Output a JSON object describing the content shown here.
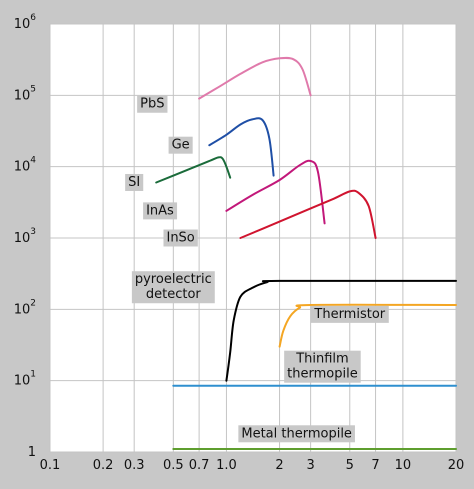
{
  "chart_data": {
    "type": "line",
    "title": "",
    "xlabel": "",
    "ylabel": "",
    "x_scale": "log",
    "y_scale": "log",
    "xlim": [
      0.1,
      20
    ],
    "ylim": [
      1,
      1000000
    ],
    "grid": true,
    "x_ticks": [
      {
        "value": 0.1,
        "label": "0.1"
      },
      {
        "value": 0.2,
        "label": "0.2"
      },
      {
        "value": 0.3,
        "label": "0.3"
      },
      {
        "value": 0.5,
        "label": "0.5"
      },
      {
        "value": 0.7,
        "label": "0.7"
      },
      {
        "value": 1.0,
        "label": "1.0"
      },
      {
        "value": 2,
        "label": "2"
      },
      {
        "value": 3,
        "label": "3"
      },
      {
        "value": 5,
        "label": "5"
      },
      {
        "value": 7,
        "label": "7"
      },
      {
        "value": 10,
        "label": "10"
      },
      {
        "value": 20,
        "label": "20"
      }
    ],
    "y_ticks": [
      {
        "value": 1,
        "base": "1",
        "exp": ""
      },
      {
        "value": 10,
        "base": "10",
        "exp": "1"
      },
      {
        "value": 100,
        "base": "10",
        "exp": "2"
      },
      {
        "value": 1000,
        "base": "10",
        "exp": "3"
      },
      {
        "value": 10000,
        "base": "10",
        "exp": "4"
      },
      {
        "value": 100000,
        "base": "10",
        "exp": "5"
      },
      {
        "value": 1000000,
        "base": "10",
        "exp": "6"
      }
    ],
    "series": [
      {
        "name": "PbS",
        "color": "#e07aab",
        "x": [
          0.7,
          0.9,
          1.2,
          1.6,
          2.0,
          2.4,
          2.7,
          3.0
        ],
        "y": [
          90000,
          130000,
          200000,
          290000,
          330000,
          320000,
          230000,
          100000
        ]
      },
      {
        "name": "Ge",
        "color": "#1f4fa6",
        "x": [
          0.8,
          1.0,
          1.2,
          1.4,
          1.6,
          1.75,
          1.85
        ],
        "y": [
          20000,
          28000,
          39000,
          46000,
          45000,
          25000,
          7500
        ]
      },
      {
        "name": "SI",
        "color": "#1a6b3a",
        "x": [
          0.4,
          0.6,
          0.8,
          0.9,
          0.95,
          1.0,
          1.05
        ],
        "y": [
          6000,
          9000,
          12000,
          13500,
          13000,
          10000,
          7000
        ]
      },
      {
        "name": "InAs",
        "color": "#c2187a",
        "x": [
          1.0,
          1.4,
          2.0,
          2.6,
          3.0,
          3.3,
          3.6
        ],
        "y": [
          2400,
          4000,
          6500,
          10500,
          12000,
          8500,
          1600
        ]
      },
      {
        "name": "InSo",
        "color": "#d0142f",
        "x": [
          1.2,
          2.0,
          3.0,
          4.0,
          5.0,
          5.6,
          6.4,
          7.0
        ],
        "y": [
          1000,
          1700,
          2600,
          3500,
          4500,
          4300,
          2800,
          1000
        ]
      },
      {
        "name": "pyroelectric detector",
        "color": "#000000",
        "x": [
          1.0,
          1.05,
          1.1,
          1.2,
          1.4,
          1.7,
          2.0,
          20
        ],
        "y": [
          10,
          25,
          70,
          150,
          200,
          240,
          250,
          250
        ]
      },
      {
        "name": "Thermistor",
        "color": "#f4a623",
        "x": [
          2.0,
          2.1,
          2.3,
          2.6,
          3.0,
          20
        ],
        "y": [
          30,
          50,
          80,
          105,
          115,
          115
        ]
      },
      {
        "name": "Thinfilm thermopile",
        "color": "#2e8fcf",
        "x": [
          0.5,
          20
        ],
        "y": [
          8.5,
          8.5
        ]
      },
      {
        "name": "Metal thermopile",
        "color": "#5e9e2e",
        "x": [
          0.5,
          20
        ],
        "y": [
          1.1,
          1.1
        ]
      }
    ],
    "labels": [
      {
        "series": "PbS",
        "text": [
          "PbS"
        ],
        "at": [
          0.38,
          75000
        ]
      },
      {
        "series": "Ge",
        "text": [
          "Ge"
        ],
        "at": [
          0.55,
          20000
        ]
      },
      {
        "series": "SI",
        "text": [
          "SI"
        ],
        "at": [
          0.3,
          6000
        ]
      },
      {
        "series": "InAs",
        "text": [
          "InAs"
        ],
        "at": [
          0.42,
          2400
        ]
      },
      {
        "series": "InSo",
        "text": [
          "InSo"
        ],
        "at": [
          0.55,
          1000
        ]
      },
      {
        "series": "pyroelectric detector",
        "text": [
          "pyroelectric",
          "detector"
        ],
        "at": [
          0.5,
          260
        ]
      },
      {
        "series": "Thermistor",
        "text": [
          "Thermistor"
        ],
        "at": [
          5.0,
          85
        ]
      },
      {
        "series": "Thinfilm thermopile",
        "text": [
          "Thinfilm",
          "thermopile"
        ],
        "at": [
          3.5,
          20
        ]
      },
      {
        "series": "Metal thermopile",
        "text": [
          "Metal thermopile"
        ],
        "at": [
          2.5,
          1.8
        ]
      }
    ]
  }
}
